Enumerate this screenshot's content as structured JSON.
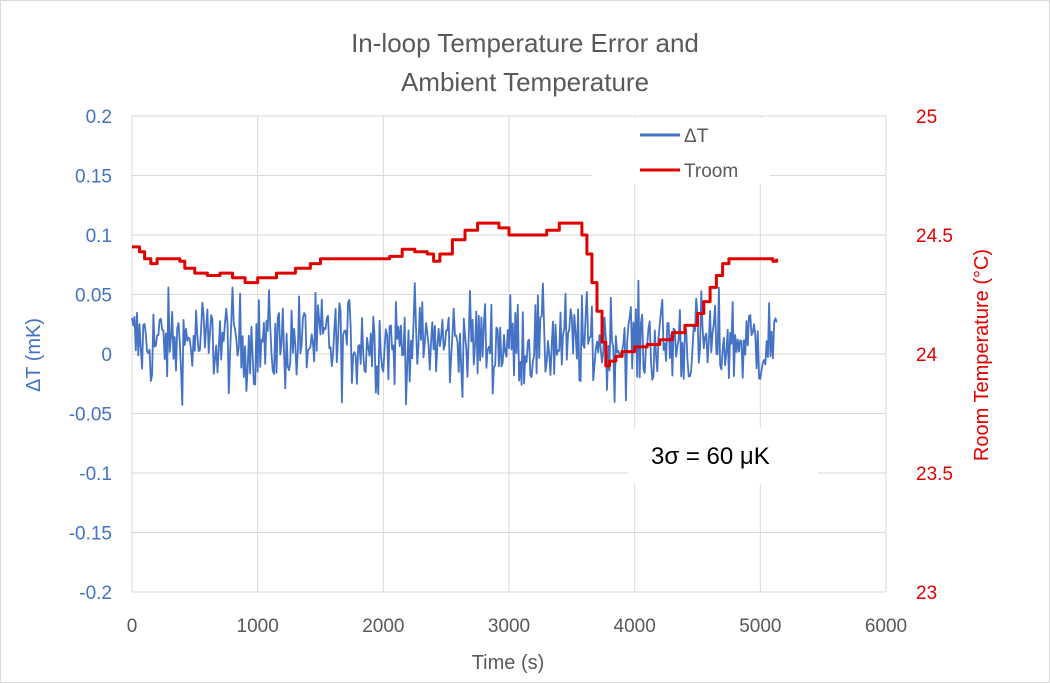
{
  "chart_data": {
    "type": "line",
    "title": [
      "In-loop Temperature Error and",
      "Ambient Temperature"
    ],
    "xlabel": "Time (s)",
    "ylabel_left": "ΔT (mK)",
    "ylabel_right": "Room Temperature (°C)",
    "xlim": [
      0,
      6000
    ],
    "ylim_left": [
      -0.2,
      0.2
    ],
    "ylim_right": [
      23,
      25
    ],
    "x_ticks": [
      "0",
      "1000",
      "2000",
      "3000",
      "4000",
      "5000",
      "6000"
    ],
    "y_left_ticks": [
      "0.2",
      "0.15",
      "0.1",
      "0.05",
      "0",
      "-0.05",
      "-0.1",
      "-0.15",
      "-0.2"
    ],
    "y_right_ticks": [
      "25",
      "24.5",
      "24",
      "23.5",
      "23"
    ],
    "grid": true,
    "legend_position": "top-right",
    "annotation": "3σ = 60 μK",
    "colors": {
      "dT": "#4472c4",
      "troom": "#e00000",
      "left_axis": "#4472c4",
      "right_axis": "#e00000",
      "text": "#595959",
      "grid": "#d9d9d9"
    },
    "series": [
      {
        "name": "ΔT",
        "axis": "left",
        "x_range": [
          0,
          5130
        ],
        "sample_interval_s": 10,
        "mean_mK": 0.01,
        "three_sigma_mK": 0.06,
        "approx_min_mK": -0.051,
        "approx_max_mK": 0.07
      },
      {
        "name": "Troom",
        "axis": "right",
        "points": [
          [
            0,
            24.45
          ],
          [
            60,
            24.43
          ],
          [
            100,
            24.4
          ],
          [
            150,
            24.38
          ],
          [
            200,
            24.4
          ],
          [
            300,
            24.4
          ],
          [
            380,
            24.39
          ],
          [
            420,
            24.36
          ],
          [
            500,
            24.34
          ],
          [
            600,
            24.33
          ],
          [
            700,
            24.34
          ],
          [
            800,
            24.32
          ],
          [
            900,
            24.3
          ],
          [
            1000,
            24.32
          ],
          [
            1150,
            24.34
          ],
          [
            1300,
            24.36
          ],
          [
            1420,
            24.38
          ],
          [
            1500,
            24.4
          ],
          [
            1700,
            24.4
          ],
          [
            1900,
            24.4
          ],
          [
            2050,
            24.41
          ],
          [
            2150,
            24.44
          ],
          [
            2250,
            24.43
          ],
          [
            2350,
            24.42
          ],
          [
            2400,
            24.39
          ],
          [
            2450,
            24.42
          ],
          [
            2550,
            24.48
          ],
          [
            2650,
            24.52
          ],
          [
            2750,
            24.55
          ],
          [
            2850,
            24.55
          ],
          [
            2920,
            24.53
          ],
          [
            3000,
            24.5
          ],
          [
            3200,
            24.5
          ],
          [
            3300,
            24.52
          ],
          [
            3400,
            24.55
          ],
          [
            3500,
            24.55
          ],
          [
            3580,
            24.5
          ],
          [
            3620,
            24.42
          ],
          [
            3660,
            24.3
          ],
          [
            3700,
            24.18
          ],
          [
            3740,
            24.05
          ],
          [
            3770,
            23.95
          ],
          [
            3800,
            23.97
          ],
          [
            3850,
            23.99
          ],
          [
            3900,
            24.01
          ],
          [
            4000,
            24.03
          ],
          [
            4100,
            24.04
          ],
          [
            4200,
            24.06
          ],
          [
            4300,
            24.09
          ],
          [
            4400,
            24.12
          ],
          [
            4500,
            24.17
          ],
          [
            4550,
            24.22
          ],
          [
            4600,
            24.28
          ],
          [
            4650,
            24.33
          ],
          [
            4700,
            24.38
          ],
          [
            4750,
            24.4
          ],
          [
            4850,
            24.4
          ],
          [
            5000,
            24.4
          ],
          [
            5100,
            24.39
          ],
          [
            5130,
            24.4
          ]
        ]
      }
    ]
  }
}
